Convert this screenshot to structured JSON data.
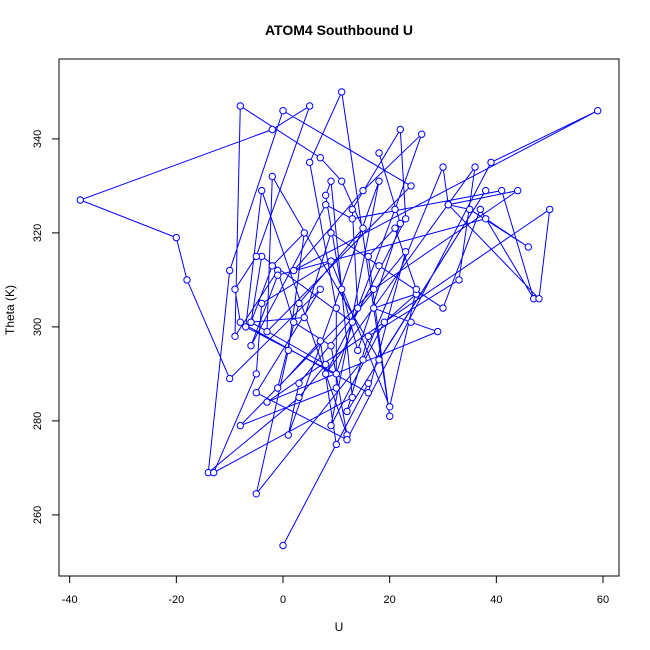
{
  "chart_data": {
    "type": "line",
    "title": "ATOM4 Southbound U",
    "xlabel": "U",
    "ylabel": "Theta (K)",
    "xlim": [
      -42,
      63
    ],
    "ylim": [
      247,
      357
    ],
    "x_ticks": [
      -40,
      -20,
      0,
      20,
      40,
      60
    ],
    "y_ticks": [
      260,
      280,
      300,
      320,
      340
    ],
    "grid": false,
    "legend": "none",
    "colors": {
      "series": "#0000ff",
      "frame": "#000000",
      "background": "#ffffff"
    },
    "markers": "open-circle",
    "series": [
      {
        "x": [
          0,
          16,
          10,
          7,
          -1,
          3,
          15,
          11,
          7,
          -8,
          -9,
          -1,
          2,
          9,
          12,
          -4,
          -7,
          10,
          14,
          13,
          22,
          23,
          8,
          36,
          33,
          16,
          12,
          38,
          18,
          -2,
          -3,
          24,
          0,
          -10,
          -14,
          3,
          8,
          -6,
          -2,
          4,
          1,
          -5,
          15,
          30,
          31,
          35,
          46,
          38,
          -1,
          -6,
          8,
          13,
          41,
          47,
          37,
          30,
          18,
          9,
          4,
          -6,
          -4,
          13,
          21,
          26,
          15,
          2,
          59,
          39,
          12,
          -5,
          7,
          -10,
          -18,
          -20,
          -38,
          -2,
          5,
          -5,
          -9,
          -8,
          16,
          23,
          3,
          1,
          18,
          9,
          19,
          25,
          17,
          24,
          29,
          -3,
          50,
          48,
          31,
          44,
          17,
          -8,
          10,
          10,
          5,
          11,
          20,
          16,
          21,
          25,
          20,
          9,
          -4,
          -5,
          -13,
          13,
          9,
          8,
          11,
          14,
          22,
          18
        ],
        "y": [
          253.5,
          288,
          275,
          297,
          287,
          305,
          321,
          331,
          336,
          347,
          298,
          312,
          301,
          296,
          277,
          329,
          300,
          290,
          304,
          325,
          342,
          323,
          290,
          334,
          310,
          298,
          282,
          329,
          293,
          332,
          299,
          330,
          346,
          312,
          269,
          285,
          292,
          301,
          313,
          320,
          295,
          264.5,
          293,
          334,
          326,
          325,
          317,
          323,
          311,
          296,
          326,
          323,
          329,
          306,
          325,
          304,
          313,
          320,
          302,
          301,
          315,
          301,
          325,
          341,
          329,
          312,
          346,
          335,
          276,
          286,
          308,
          289,
          310,
          319,
          327,
          342,
          347,
          315,
          308,
          301,
          286,
          316,
          288,
          277,
          331,
          279,
          301,
          307,
          304,
          301,
          299,
          284,
          325,
          306,
          326,
          329,
          308,
          279,
          287,
          304,
          335,
          350,
          281,
          315,
          321,
          308,
          283,
          314,
          305,
          290,
          269,
          285,
          331,
          328,
          308,
          295,
          322,
          337
        ]
      }
    ]
  }
}
